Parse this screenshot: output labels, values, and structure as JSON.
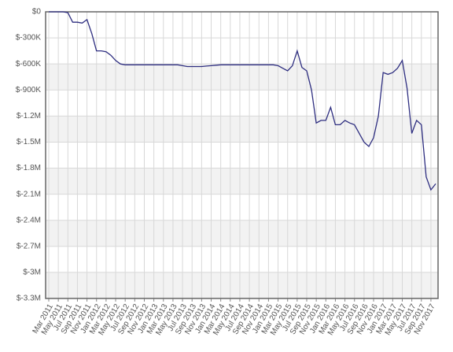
{
  "chart_data": {
    "type": "line",
    "x": [
      "2011-03",
      "2011-04",
      "2011-05",
      "2011-06",
      "2011-07",
      "2011-08",
      "2011-09",
      "2011-10",
      "2011-11",
      "2011-12",
      "2012-01",
      "2012-02",
      "2012-03",
      "2012-04",
      "2012-05",
      "2012-06",
      "2012-07",
      "2012-08",
      "2012-09",
      "2012-10",
      "2012-11",
      "2012-12",
      "2013-01",
      "2013-02",
      "2013-03",
      "2013-04",
      "2013-05",
      "2013-06",
      "2013-07",
      "2013-08",
      "2013-09",
      "2013-10",
      "2013-11",
      "2013-12",
      "2014-01",
      "2014-02",
      "2014-03",
      "2014-04",
      "2014-05",
      "2014-06",
      "2014-07",
      "2014-08",
      "2014-09",
      "2014-10",
      "2014-11",
      "2014-12",
      "2015-01",
      "2015-02",
      "2015-03",
      "2015-04",
      "2015-05",
      "2015-06",
      "2015-07",
      "2015-08",
      "2015-09",
      "2015-10",
      "2015-11",
      "2015-12",
      "2016-01",
      "2016-02",
      "2016-03",
      "2016-04",
      "2016-05",
      "2016-06",
      "2016-07",
      "2016-08",
      "2016-09",
      "2016-10",
      "2016-11",
      "2016-12",
      "2017-01",
      "2017-02",
      "2017-03",
      "2017-04",
      "2017-05",
      "2017-06",
      "2017-07",
      "2017-08",
      "2017-09",
      "2017-10",
      "2017-11",
      "2017-12"
    ],
    "series": [
      {
        "color": "#2e2e80",
        "values": [
          0,
          0,
          0,
          0,
          -10000,
          -120000,
          -120000,
          -130000,
          -90000,
          -250000,
          -450000,
          -450000,
          -460000,
          -500000,
          -560000,
          -600000,
          -610000,
          -610000,
          -610000,
          -610000,
          -610000,
          -610000,
          -610000,
          -610000,
          -610000,
          -610000,
          -610000,
          -610000,
          -620000,
          -630000,
          -630000,
          -630000,
          -630000,
          -625000,
          -620000,
          -615000,
          -610000,
          -610000,
          -610000,
          -610000,
          -610000,
          -610000,
          -610000,
          -610000,
          -610000,
          -610000,
          -610000,
          -610000,
          -620000,
          -650000,
          -680000,
          -620000,
          -450000,
          -640000,
          -680000,
          -900000,
          -1280000,
          -1250000,
          -1250000,
          -1100000,
          -1300000,
          -1300000,
          -1250000,
          -1280000,
          -1300000,
          -1400000,
          -1500000,
          -1550000,
          -1450000,
          -1200000,
          -700000,
          -720000,
          -700000,
          -650000,
          -560000,
          -880000,
          -1400000,
          -1250000,
          -1300000,
          -1900000,
          -2050000,
          -1980000
        ]
      }
    ],
    "xlim": [
      "2011-03",
      "2017-12"
    ],
    "xticks": [
      {
        "value": "2011-03",
        "label": "Mar 2011"
      },
      {
        "value": "2011-05",
        "label": "May 2011"
      },
      {
        "value": "2011-07",
        "label": "Jul 2011"
      },
      {
        "value": "2011-09",
        "label": "Sep 2011"
      },
      {
        "value": "2011-11",
        "label": "Nov 2011"
      },
      {
        "value": "2012-01",
        "label": "Jan 2012"
      },
      {
        "value": "2012-03",
        "label": "Mar 2012"
      },
      {
        "value": "2012-05",
        "label": "May 2012"
      },
      {
        "value": "2012-07",
        "label": "Jul 2012"
      },
      {
        "value": "2012-09",
        "label": "Sep 2012"
      },
      {
        "value": "2012-11",
        "label": "Nov 2012"
      },
      {
        "value": "2013-01",
        "label": "Jan 2013"
      },
      {
        "value": "2013-03",
        "label": "Mar 2013"
      },
      {
        "value": "2013-05",
        "label": "May 2013"
      },
      {
        "value": "2013-07",
        "label": "Jul 2013"
      },
      {
        "value": "2013-09",
        "label": "Sep 2013"
      },
      {
        "value": "2013-11",
        "label": "Nov 2013"
      },
      {
        "value": "2014-01",
        "label": "Jan 2014"
      },
      {
        "value": "2014-03",
        "label": "Mar 2014"
      },
      {
        "value": "2014-05",
        "label": "May 2014"
      },
      {
        "value": "2014-07",
        "label": "Jul 2014"
      },
      {
        "value": "2014-09",
        "label": "Sep 2014"
      },
      {
        "value": "2014-11",
        "label": "Nov 2014"
      },
      {
        "value": "2015-01",
        "label": "Jan 2015"
      },
      {
        "value": "2015-03",
        "label": "Mar 2015"
      },
      {
        "value": "2015-05",
        "label": "May 2015"
      },
      {
        "value": "2015-07",
        "label": "Jul 2015"
      },
      {
        "value": "2015-09",
        "label": "Sep 2015"
      },
      {
        "value": "2015-11",
        "label": "Nov 2015"
      },
      {
        "value": "2016-01",
        "label": "Jan 2016"
      },
      {
        "value": "2016-03",
        "label": "Mar 2016"
      },
      {
        "value": "2016-05",
        "label": "May 2016"
      },
      {
        "value": "2016-07",
        "label": "Jul 2016"
      },
      {
        "value": "2016-09",
        "label": "Sep 2016"
      },
      {
        "value": "2016-11",
        "label": "Nov 2016"
      },
      {
        "value": "2017-01",
        "label": "Jan 2017"
      },
      {
        "value": "2017-03",
        "label": "Mar 2017"
      },
      {
        "value": "2017-05",
        "label": "May 2017"
      },
      {
        "value": "2017-07",
        "label": "Jul 2017"
      },
      {
        "value": "2017-09",
        "label": "Sep 2017"
      },
      {
        "value": "2017-11",
        "label": "Nov 2017"
      }
    ],
    "ylim": [
      -3300000,
      0
    ],
    "yticks": [
      {
        "value": 0,
        "label": "$0"
      },
      {
        "value": -300000,
        "label": "$-300K"
      },
      {
        "value": -600000,
        "label": "$-600K"
      },
      {
        "value": -900000,
        "label": "$-900K"
      },
      {
        "value": -1200000,
        "label": "$-1.2M"
      },
      {
        "value": -1500000,
        "label": "$-1.5M"
      },
      {
        "value": -1800000,
        "label": "$-1.8M"
      },
      {
        "value": -2100000,
        "label": "$-2.1M"
      },
      {
        "value": -2400000,
        "label": "$-2.4M"
      },
      {
        "value": -2700000,
        "label": "$-2.7M"
      },
      {
        "value": -3000000,
        "label": "$-3M"
      },
      {
        "value": -3300000,
        "label": "$-3.3M"
      }
    ],
    "grid": true
  }
}
